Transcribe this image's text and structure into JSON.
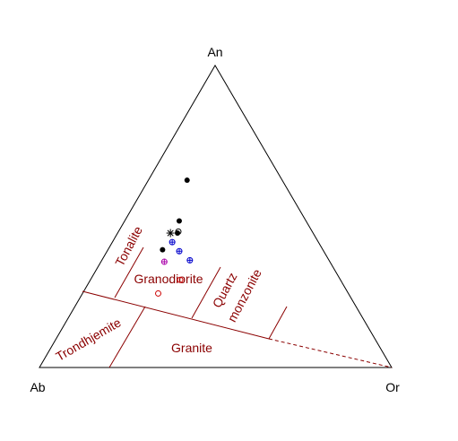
{
  "chart_data": {
    "type": "scatter",
    "diagram": "ternary",
    "vertices": {
      "top": "An",
      "left": "Ab",
      "right": "Or"
    },
    "fields": [
      {
        "name": "Tonalite",
        "text": "Tonalite"
      },
      {
        "name": "Granodiorite",
        "text": "Granodiorite"
      },
      {
        "name": "Quartz monzonite",
        "text_lines": [
          "Quartz",
          "monzonite"
        ]
      },
      {
        "name": "Trondhjemite",
        "text": "Trondhjemite"
      },
      {
        "name": "Granite",
        "text": "Granite"
      }
    ],
    "series": [
      {
        "marker": "filled-circle",
        "color": "#000000",
        "points": [
          {
            "An": 0.62,
            "Ab": 0.27,
            "Or": 0.11
          },
          {
            "An": 0.485,
            "Ab": 0.36,
            "Or": 0.155
          },
          {
            "An": 0.445,
            "Ab": 0.385,
            "Or": 0.17
          },
          {
            "An": 0.39,
            "Ab": 0.455,
            "Or": 0.155
          }
        ]
      },
      {
        "marker": "asterisk",
        "color": "#000000",
        "points": [
          {
            "An": 0.445,
            "Ab": 0.405,
            "Or": 0.15
          }
        ]
      },
      {
        "marker": "open-circle",
        "color": "#000000",
        "points": [
          {
            "An": 0.45,
            "Ab": 0.38,
            "Or": 0.17
          }
        ]
      },
      {
        "marker": "circle-plus",
        "color": "#0000cc",
        "points": [
          {
            "An": 0.415,
            "Ab": 0.415,
            "Or": 0.17
          },
          {
            "An": 0.385,
            "Ab": 0.41,
            "Or": 0.205
          },
          {
            "An": 0.355,
            "Ab": 0.395,
            "Or": 0.25
          }
        ]
      },
      {
        "marker": "circle-plus",
        "color": "#aa00aa",
        "points": [
          {
            "An": 0.35,
            "Ab": 0.47,
            "Or": 0.18
          }
        ]
      },
      {
        "marker": "open-circle",
        "color": "#cc0000",
        "points": [
          {
            "An": 0.29,
            "Ab": 0.455,
            "Or": 0.255
          },
          {
            "An": 0.245,
            "Ab": 0.54,
            "Or": 0.215
          }
        ]
      }
    ],
    "colors": {
      "frame": "#000000",
      "field_lines": "#8b0000"
    }
  }
}
